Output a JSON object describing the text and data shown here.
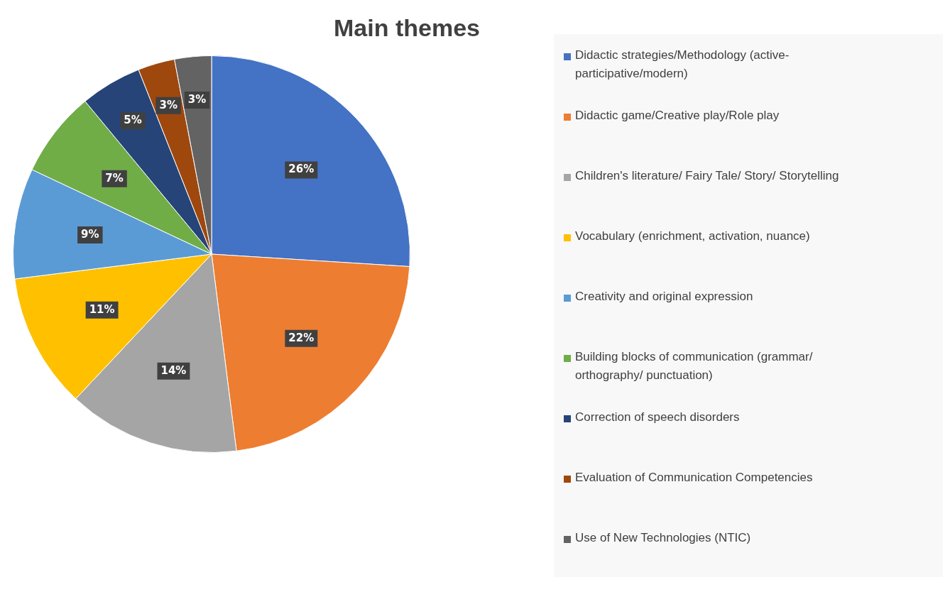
{
  "chart_data": {
    "type": "pie",
    "title": "Main themes",
    "categories": [
      "Didactic strategies/Methodology (active-participative/modern)",
      "Didactic game/Creative play/Role play",
      "Children's literature/ Fairy Tale/ Story/ Storytelling",
      "Vocabulary (enrichment, activation, nuance)",
      "Creativity and original expression",
      "Building blocks of communication (grammar/ orthography/ punctuation)",
      "Correction of speech disorders",
      "Evaluation of Communication Competencies",
      "Use of New Technologies (NTIC)"
    ],
    "values": [
      26,
      22,
      14,
      11,
      9,
      7,
      5,
      3,
      3
    ],
    "value_labels": [
      "26%",
      "22%",
      "14%",
      "11%",
      "9%",
      "7%",
      "5%",
      "3%",
      "3%"
    ],
    "colors": [
      "#4472c4",
      "#ed7d31",
      "#a5a5a5",
      "#ffc000",
      "#5b9bd5",
      "#70ad47",
      "#264478",
      "#9e480e",
      "#636363"
    ],
    "legend": "right"
  }
}
